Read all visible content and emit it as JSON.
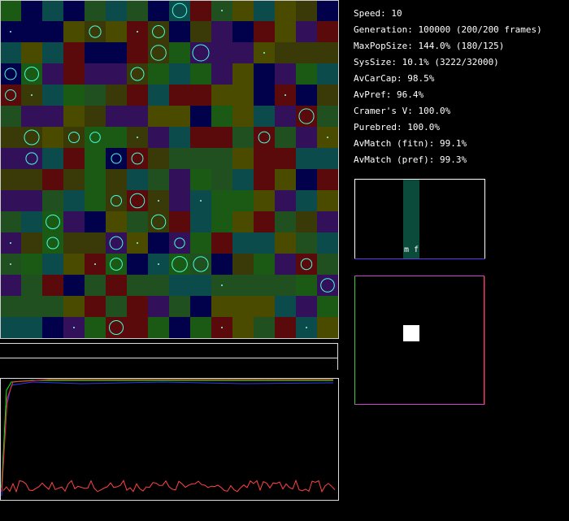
{
  "stats": [
    "Speed: 10",
    "Generation: 100000 (200/200 frames)",
    "MaxPopSize: 144.0% (180/125)",
    "SysSize: 10.1% (3222/32000)",
    "AvCarCap: 98.5%",
    "AvPref: 96.4%",
    "Cramer's V: 100.0%",
    "Purebred: 100.0%",
    "AvMatch (fitn): 99.1%",
    "AvMatch (pref): 99.3%"
  ],
  "pref_panel": {
    "label": "m f"
  }
}
